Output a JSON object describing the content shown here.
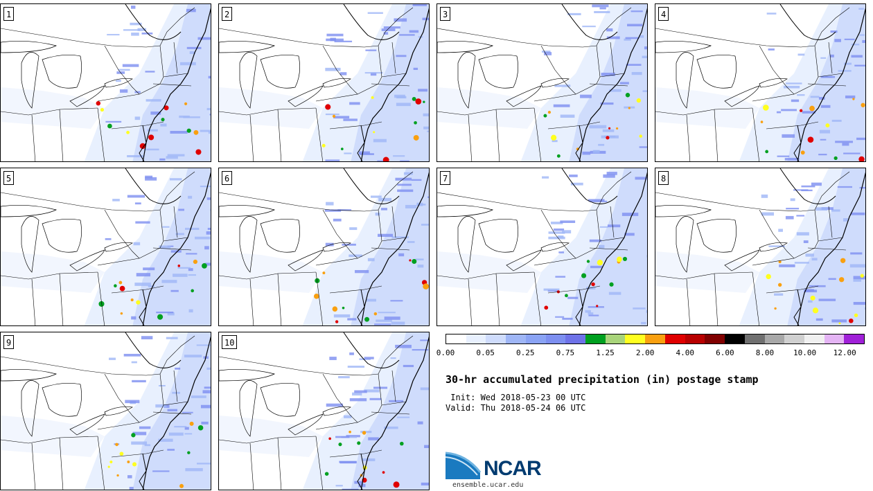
{
  "panels": [
    {
      "label": "1"
    },
    {
      "label": "2"
    },
    {
      "label": "3"
    },
    {
      "label": "4"
    },
    {
      "label": "5"
    },
    {
      "label": "6"
    },
    {
      "label": "7"
    },
    {
      "label": "8"
    },
    {
      "label": "9"
    },
    {
      "label": "10"
    }
  ],
  "colorbar": {
    "colors": [
      "#ffffff",
      "#e8f0fe",
      "#cfdcfc",
      "#9fb6f6",
      "#8aa3f4",
      "#7d8ff0",
      "#6e72e8",
      "#00a020",
      "#a8d47a",
      "#ffff20",
      "#f9a010",
      "#e00000",
      "#b80000",
      "#800000",
      "#000000",
      "#707070",
      "#a8a8a8",
      "#d0d0d0",
      "#f0f0f0",
      "#e4b4f4",
      "#a020d8"
    ],
    "tick_labels": [
      "0.00",
      "0.05",
      "0.25",
      "0.75",
      "1.25",
      "2.00",
      "4.00",
      "6.00",
      "8.00",
      "10.00",
      "12.00"
    ]
  },
  "title": "30-hr accumulated precipitation (in) postage stamp",
  "init": " Init: Wed 2018-05-23 00 UTC",
  "valid": "Valid: Thu 2018-05-24 06 UTC",
  "logo": {
    "text": "NCAR",
    "site": "ensemble.ucar.edu",
    "color": "#003b70"
  }
}
